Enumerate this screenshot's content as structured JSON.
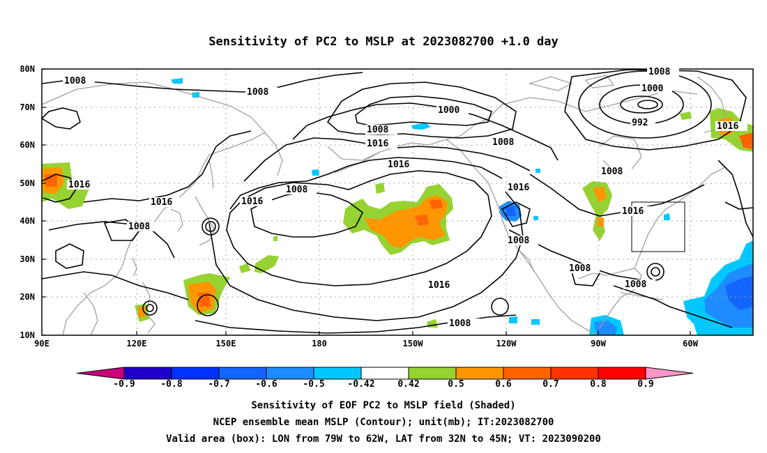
{
  "title": "Sensitivity of PC2 to MSLP at 2023082700 +1.0 day",
  "lat_labels": [
    "80N",
    "70N",
    "60N",
    "50N",
    "40N",
    "30N",
    "20N",
    "10N"
  ],
  "lon_labels": [
    "90E",
    "120E",
    "150E",
    "180",
    "150W",
    "120W",
    "90W",
    "60W"
  ],
  "contour_labels": {
    "c1008_a": "1008",
    "c1008_b": "1008",
    "c1008_c": "1008",
    "c1008_d": "1008",
    "c1008_e": "1008",
    "c1008_f": "1008",
    "c1008_g": "1008",
    "c1008_h": "1008",
    "c1008_i": "1008",
    "c1008_j": "1008",
    "c1008_k": "1008",
    "c1008_l": "1008",
    "c1016_a": "1016",
    "c1016_b": "1016",
    "c1016_c": "1016",
    "c1016_d": "1016",
    "c1016_e": "1016",
    "c1016_f": "1016",
    "c1016_g": "1016",
    "c1016_h": "1016",
    "c1000_a": "1000",
    "c1000_b": "1000",
    "c992": "992"
  },
  "colorbar": {
    "labels": [
      "-0.9",
      "-0.8",
      "-0.7",
      "-0.6",
      "-0.5",
      "-0.42",
      "0.42",
      "0.5",
      "0.6",
      "0.7",
      "0.8",
      "0.9"
    ],
    "colors": [
      "#c8007a",
      "#1e00c8",
      "#0032ff",
      "#1464ff",
      "#1e8cff",
      "#00c8ff",
      "#ffffff",
      "#96d232",
      "#ff9600",
      "#ff6400",
      "#ff3200",
      "#ff0000",
      "#ff96c8"
    ]
  },
  "captions": {
    "line1": "Sensitivity of EOF PC2 to MSLP field (Shaded)",
    "line2": "NCEP ensemble mean MSLP (Contour); unit(mb); IT:2023082700",
    "line3": "Valid area (box): LON from 79W to 62W, LAT from 32N to 45N; VT: 2023090200"
  },
  "colors": {
    "green": "#96d232",
    "orange": "#ff9600",
    "dark_orange": "#ff6400",
    "cyan": "#00c8ff",
    "blue": "#1e8cff",
    "dark_blue": "#1464ff",
    "coast": "#a0a0a0"
  }
}
